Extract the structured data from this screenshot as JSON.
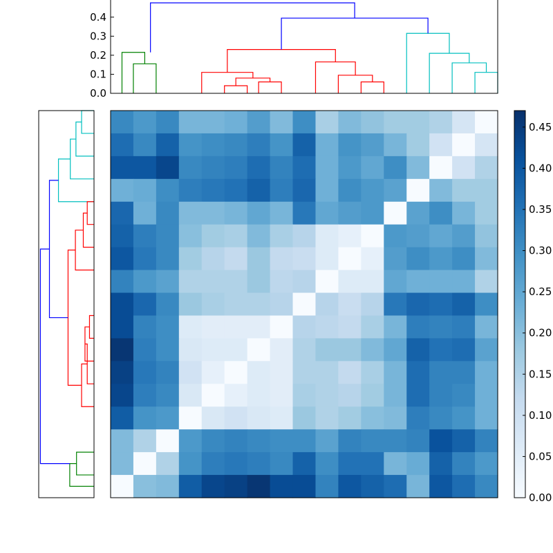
{
  "chart_data": [
    {
      "type": "dendrogram",
      "orientation": "top",
      "ylim": [
        0,
        0.49
      ],
      "yticks": [
        "0.0",
        "0.1",
        "0.2",
        "0.3",
        "0.4"
      ],
      "ytick_values": [
        0,
        0.1,
        0.2,
        0.3,
        0.4
      ],
      "leaf_count": 17,
      "links": [
        {
          "a": 0.5,
          "b": 1.5,
          "h": 0.155,
          "ha": 0,
          "hb": 0,
          "color": "#008000"
        },
        {
          "a": 0,
          "b": 1.0,
          "h": 0.215,
          "ha": 0,
          "hb": 0.155,
          "color": "#008000"
        },
        {
          "a": 4.5,
          "b": 5.5,
          "h": 0.04,
          "ha": 0,
          "hb": 0,
          "color": "#ff0000"
        },
        {
          "a": 5.0,
          "b": 6.5,
          "h": 0.08,
          "ha": 0.04,
          "hb": 0.06,
          "color": "#ff0000"
        },
        {
          "a": 6.0,
          "b": 7.0,
          "h": 0.06,
          "ha": 0,
          "hb": 0,
          "color": "#ff0000"
        },
        {
          "a": 3.5,
          "b": 5.75,
          "h": 0.11,
          "ha": 0,
          "hb": 0.08,
          "color": "#ff0000"
        },
        {
          "a": 10.5,
          "b": 11.5,
          "h": 0.06,
          "ha": 0,
          "hb": 0,
          "color": "#ff0000"
        },
        {
          "a": 9.5,
          "b": 11.0,
          "h": 0.095,
          "ha": 0,
          "hb": 0.06,
          "color": "#ff0000"
        },
        {
          "a": 8.5,
          "b": 10.25,
          "h": 0.165,
          "ha": 0,
          "hb": 0.095,
          "color": "#ff0000"
        },
        {
          "a": 4.625,
          "b": 9.375,
          "h": 0.23,
          "ha": 0.11,
          "hb": 0.165,
          "color": "#ff0000"
        },
        {
          "a": 15.5,
          "b": 16.5,
          "h": 0.11,
          "ha": 0,
          "hb": 0,
          "color": "#00bfbf"
        },
        {
          "a": 14.5,
          "b": 16.0,
          "h": 0.16,
          "ha": 0,
          "hb": 0.11,
          "color": "#00bfbf"
        },
        {
          "a": 13.5,
          "b": 15.25,
          "h": 0.21,
          "ha": 0,
          "hb": 0.16,
          "color": "#00bfbf"
        },
        {
          "a": 12.5,
          "b": 14.375,
          "h": 0.315,
          "ha": 0,
          "hb": 0.21,
          "color": "#00bfbf"
        },
        {
          "a": 7.0,
          "b": 13.4375,
          "h": 0.395,
          "ha": 0.23,
          "hb": 0.315,
          "color": "#0000ff"
        },
        {
          "a": 1.25,
          "b": 10.21875,
          "h": 0.475,
          "ha": 0.215,
          "hb": 0.395,
          "color": "#0000ff"
        }
      ]
    },
    {
      "type": "dendrogram",
      "orientation": "left",
      "ylim": [
        0,
        0.49
      ],
      "leaf_count": 17,
      "links": [
        {
          "a": 15.5,
          "b": 16.5,
          "h": 0.11,
          "ha": 0,
          "hb": 0,
          "color": "#00bfbf"
        },
        {
          "a": 14.5,
          "b": 16.0,
          "h": 0.16,
          "ha": 0,
          "hb": 0.11,
          "color": "#00bfbf"
        },
        {
          "a": 13.5,
          "b": 15.25,
          "h": 0.21,
          "ha": 0,
          "hb": 0.16,
          "color": "#00bfbf"
        },
        {
          "a": 12.5,
          "b": 14.375,
          "h": 0.315,
          "ha": 0,
          "hb": 0.21,
          "color": "#00bfbf"
        },
        {
          "a": 11.5,
          "b": 12.5,
          "h": 0.06,
          "ha": 0,
          "hb": 0,
          "color": "#ff0000"
        },
        {
          "a": 10.5,
          "b": 12.0,
          "h": 0.095,
          "ha": 0,
          "hb": 0.06,
          "color": "#ff0000"
        },
        {
          "a": 9.5,
          "b": 11.25,
          "h": 0.165,
          "ha": 0,
          "hb": 0.095,
          "color": "#ff0000"
        },
        {
          "a": 6.5,
          "b": 7.5,
          "h": 0.04,
          "ha": 0,
          "hb": 0,
          "color": "#ff0000"
        },
        {
          "a": 5.5,
          "b": 7.0,
          "h": 0.08,
          "ha": 0,
          "hb": 0.04,
          "color": "#ff0000"
        },
        {
          "a": 4.5,
          "b": 6.25,
          "h": 0.06,
          "ha": 0,
          "hb": 0.08,
          "color": "#ff0000"
        },
        {
          "a": 3.5,
          "b": 5.375,
          "h": 0.11,
          "ha": 0,
          "hb": 0.06,
          "color": "#ff0000"
        },
        {
          "a": 4.4375,
          "b": 10.375,
          "h": 0.23,
          "ha": 0.11,
          "hb": 0.165,
          "color": "#ff0000"
        },
        {
          "a": 7.40625,
          "b": 13.4375,
          "h": 0.395,
          "ha": 0.23,
          "hb": 0.315,
          "color": "#0000ff"
        },
        {
          "a": 0.5,
          "b": 1.5,
          "h": 0.155,
          "ha": 0,
          "hb": 0,
          "color": "#008000"
        },
        {
          "a": 0,
          "b": 1.0,
          "h": 0.215,
          "ha": 0,
          "hb": 0.155,
          "color": "#008000"
        },
        {
          "a": 1.0,
          "b": 10.421875,
          "h": 0.475,
          "ha": 0.215,
          "hb": 0.395,
          "color": "#0000ff"
        }
      ]
    },
    {
      "type": "heatmap",
      "colormap": [
        "#f7fbff",
        "#deebf7",
        "#c6dbef",
        "#9ecae1",
        "#6baed6",
        "#4292c6",
        "#2171b5",
        "#08519c",
        "#08306b"
      ],
      "vmin": 0,
      "vmax": 0.47,
      "rows": 17,
      "cols": 17,
      "values": [
        [
          0.31,
          0.28,
          0.31,
          0.22,
          0.22,
          0.23,
          0.27,
          0.21,
          0.3,
          0.16,
          0.21,
          0.19,
          0.17,
          0.17,
          0.15,
          0.08,
          0.0
        ],
        [
          0.36,
          0.31,
          0.38,
          0.29,
          0.3,
          0.31,
          0.33,
          0.29,
          0.38,
          0.23,
          0.29,
          0.27,
          0.22,
          0.17,
          0.09,
          0.0,
          0.08
        ],
        [
          0.4,
          0.4,
          0.43,
          0.31,
          0.32,
          0.33,
          0.36,
          0.32,
          0.36,
          0.23,
          0.28,
          0.25,
          0.3,
          0.21,
          0.0,
          0.09,
          0.15
        ],
        [
          0.23,
          0.24,
          0.3,
          0.33,
          0.34,
          0.35,
          0.38,
          0.33,
          0.37,
          0.23,
          0.3,
          0.28,
          0.26,
          0.0,
          0.21,
          0.17,
          0.17
        ],
        [
          0.37,
          0.23,
          0.31,
          0.21,
          0.21,
          0.22,
          0.25,
          0.22,
          0.34,
          0.25,
          0.27,
          0.28,
          0.0,
          0.26,
          0.3,
          0.22,
          0.17
        ],
        [
          0.38,
          0.33,
          0.31,
          0.2,
          0.17,
          0.16,
          0.21,
          0.16,
          0.14,
          0.06,
          0.04,
          0.0,
          0.28,
          0.27,
          0.25,
          0.27,
          0.19
        ],
        [
          0.4,
          0.34,
          0.31,
          0.17,
          0.14,
          0.12,
          0.18,
          0.12,
          0.11,
          0.06,
          0.0,
          0.04,
          0.27,
          0.3,
          0.28,
          0.3,
          0.21
        ],
        [
          0.32,
          0.28,
          0.26,
          0.15,
          0.15,
          0.15,
          0.18,
          0.13,
          0.14,
          0.0,
          0.06,
          0.06,
          0.25,
          0.23,
          0.23,
          0.23,
          0.15
        ],
        [
          0.42,
          0.37,
          0.31,
          0.18,
          0.16,
          0.15,
          0.15,
          0.14,
          0.0,
          0.14,
          0.11,
          0.14,
          0.34,
          0.37,
          0.36,
          0.38,
          0.3
        ],
        [
          0.42,
          0.32,
          0.3,
          0.06,
          0.05,
          0.05,
          0.05,
          0.0,
          0.14,
          0.13,
          0.12,
          0.16,
          0.22,
          0.33,
          0.32,
          0.33,
          0.22
        ],
        [
          0.46,
          0.33,
          0.3,
          0.07,
          0.06,
          0.06,
          0.0,
          0.05,
          0.15,
          0.18,
          0.18,
          0.21,
          0.25,
          0.38,
          0.35,
          0.36,
          0.26
        ],
        [
          0.44,
          0.34,
          0.32,
          0.09,
          0.04,
          0.0,
          0.06,
          0.05,
          0.15,
          0.15,
          0.12,
          0.16,
          0.22,
          0.36,
          0.32,
          0.32,
          0.23
        ],
        [
          0.43,
          0.33,
          0.31,
          0.07,
          0.0,
          0.04,
          0.06,
          0.05,
          0.16,
          0.15,
          0.14,
          0.17,
          0.22,
          0.36,
          0.32,
          0.31,
          0.23
        ],
        [
          0.39,
          0.29,
          0.28,
          0.0,
          0.07,
          0.09,
          0.07,
          0.06,
          0.18,
          0.15,
          0.17,
          0.2,
          0.21,
          0.33,
          0.31,
          0.29,
          0.23
        ],
        [
          0.21,
          0.15,
          0.0,
          0.28,
          0.31,
          0.32,
          0.31,
          0.3,
          0.3,
          0.26,
          0.32,
          0.31,
          0.31,
          0.32,
          0.41,
          0.38,
          0.32
        ],
        [
          0.21,
          0.0,
          0.15,
          0.29,
          0.33,
          0.34,
          0.33,
          0.31,
          0.38,
          0.3,
          0.35,
          0.35,
          0.22,
          0.24,
          0.38,
          0.32,
          0.28
        ],
        [
          0.0,
          0.2,
          0.21,
          0.39,
          0.43,
          0.44,
          0.46,
          0.42,
          0.42,
          0.32,
          0.4,
          0.38,
          0.36,
          0.22,
          0.4,
          0.36,
          0.31
        ]
      ]
    },
    {
      "type": "colorbar",
      "vmin": 0,
      "vmax": 0.47,
      "ticks": [
        "0.00",
        "0.05",
        "0.10",
        "0.15",
        "0.20",
        "0.25",
        "0.30",
        "0.35",
        "0.40",
        "0.45"
      ],
      "tick_values": [
        0,
        0.05,
        0.1,
        0.15,
        0.2,
        0.25,
        0.3,
        0.35,
        0.4,
        0.45
      ]
    }
  ]
}
